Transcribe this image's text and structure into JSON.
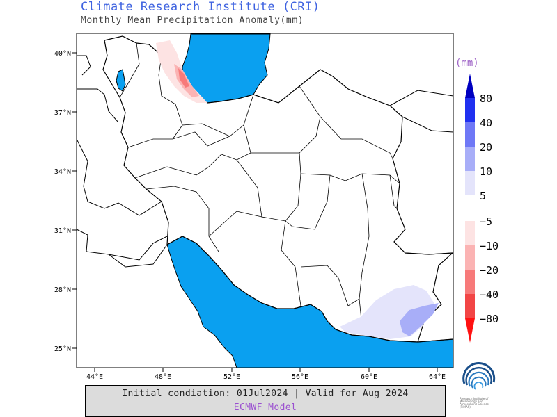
{
  "header": {
    "title": "Climate Research Institute (CRI)",
    "subtitle": "Monthly Mean Precipitation Anomaly(mm)"
  },
  "map": {
    "lat_ticks": [
      "40°N",
      "37°N",
      "34°N",
      "31°N",
      "28°N",
      "25°N"
    ],
    "lon_ticks": [
      "44°E",
      "48°E",
      "52°E",
      "56°E",
      "60°E",
      "64°E"
    ],
    "sea_color": "#0aa0f0",
    "coast_color": "#000000"
  },
  "legend": {
    "unit": "(mm)",
    "positive": [
      {
        "label": "80",
        "color": "#0000c0"
      },
      {
        "label": "40",
        "color": "#2030f0"
      },
      {
        "label": "20",
        "color": "#6f78f6"
      },
      {
        "label": "10",
        "color": "#a8aef8"
      },
      {
        "label": "5",
        "color": "#e4e4fb"
      }
    ],
    "negative": [
      {
        "label": "−5",
        "color": "#fde3e3"
      },
      {
        "label": "−10",
        "color": "#fbb3b3"
      },
      {
        "label": "−20",
        "color": "#f77a7a"
      },
      {
        "label": "−40",
        "color": "#f24646"
      },
      {
        "label": "−80",
        "color": "#ff1111"
      }
    ]
  },
  "footer": {
    "line1": "Initial condiation: 01Jul2024 | Valid for Aug 2024",
    "line2": "ECMWF Model"
  },
  "logo": {
    "icon": "institute-logo-icon",
    "caption": "Research Institute of Meteorology and Atmospheric Science (RIMAS)"
  }
}
